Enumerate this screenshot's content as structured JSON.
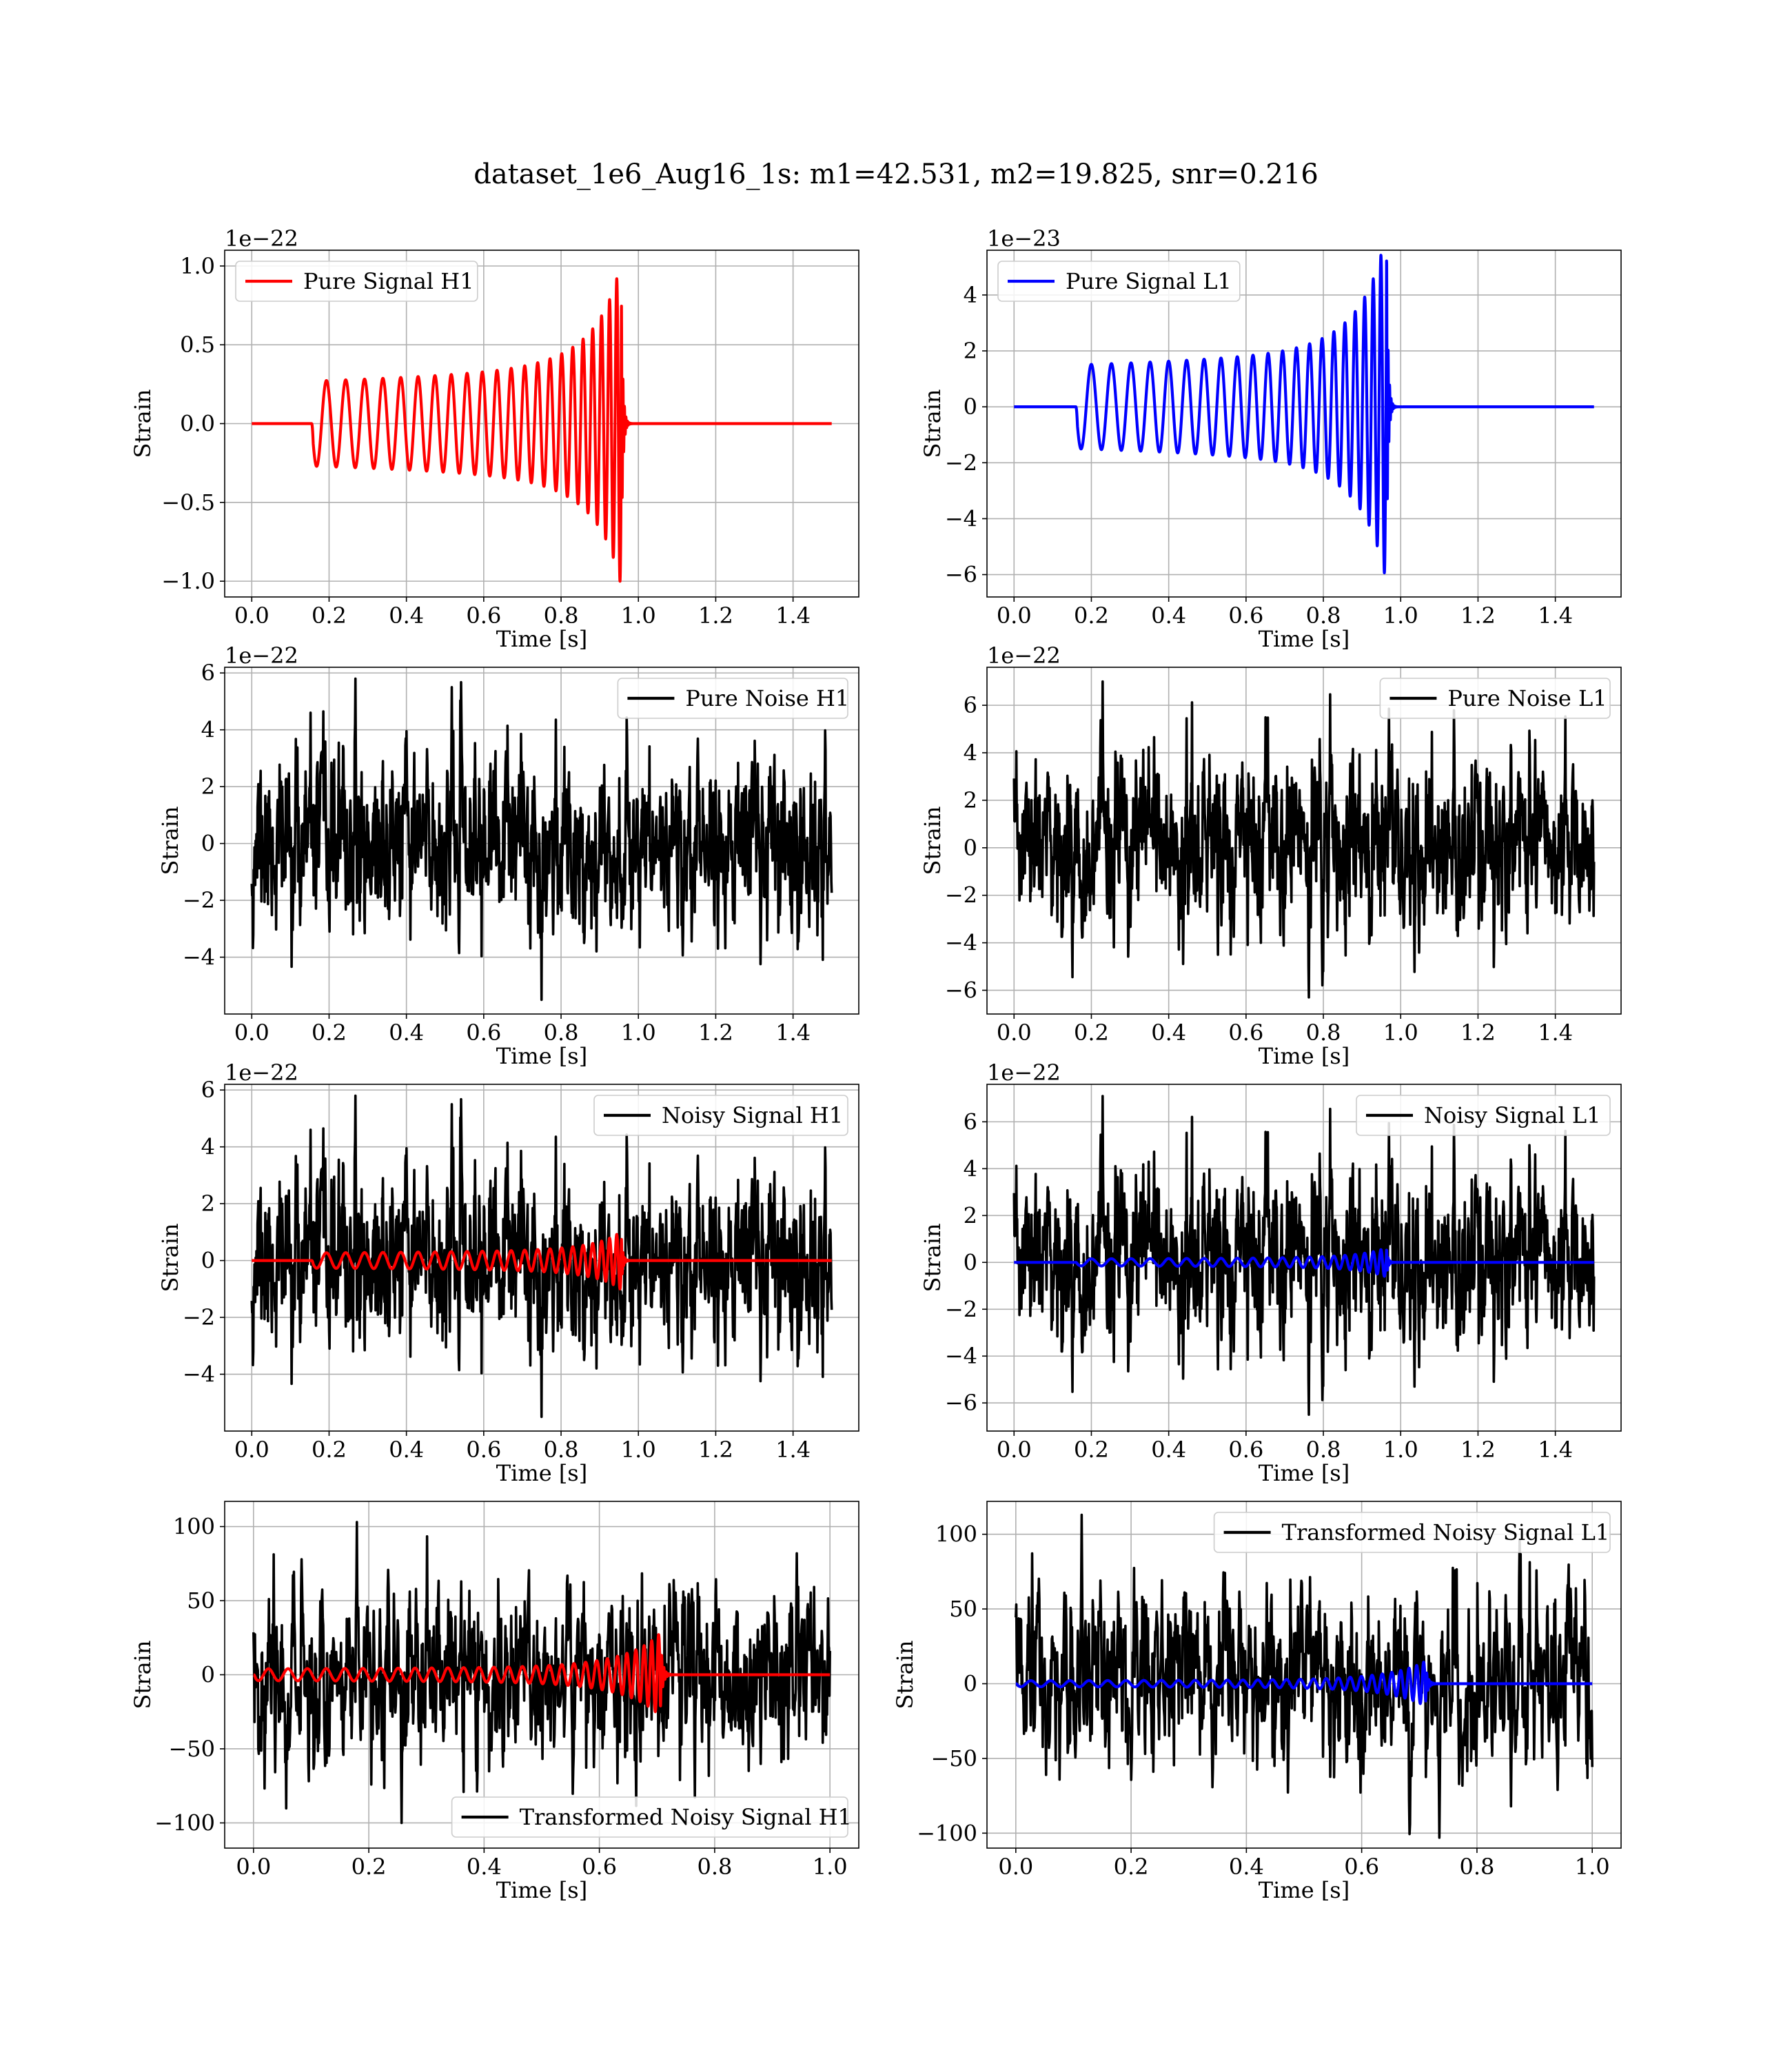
{
  "figure": {
    "title": "dataset_1e6_Aug16_1s: m1=42.531, m2=19.825, snr=0.216"
  },
  "colors": {
    "signal_h1": "#ff0000",
    "signal_l1": "#0000ff",
    "noise": "#000000",
    "grid": "#b0b0b0"
  },
  "chart_data": [
    {
      "id": "pure-signal-h1",
      "type": "line",
      "title": "",
      "xlabel": "Time [s]",
      "ylabel": "Strain",
      "offset_text": "1e−22",
      "xlim": [
        -0.07,
        1.57
      ],
      "ylim": [
        -1.1,
        1.1
      ],
      "xticks": [
        0.0,
        0.2,
        0.4,
        0.6,
        0.8,
        1.0,
        1.2,
        1.4
      ],
      "xtick_labels": [
        "0.0",
        "0.2",
        "0.4",
        "0.6",
        "0.8",
        "1.0",
        "1.2",
        "1.4"
      ],
      "yticks": [
        -1.0,
        -0.5,
        0.0,
        0.5,
        1.0
      ],
      "ytick_labels": [
        "−1.0",
        "−0.5",
        "0.0",
        "0.5",
        "1.0"
      ],
      "grid": true,
      "legend": {
        "position": "top-left",
        "entries": [
          {
            "label": "Pure Signal H1",
            "color": "#ff0000"
          }
        ]
      },
      "series": [
        {
          "name": "Pure Signal H1",
          "kind": "chirp",
          "color": "#ff0000",
          "params": {
            "t_start": 0.0,
            "t_end": 1.5,
            "t_on": 0.155,
            "t_merge": 0.955,
            "amp": 0.27,
            "peak_pos": 1.03,
            "peak_neg": -1.0,
            "cycles": 26
          }
        }
      ]
    },
    {
      "id": "pure-signal-l1",
      "type": "line",
      "title": "",
      "xlabel": "Time [s]",
      "ylabel": "Strain",
      "offset_text": "1e−23",
      "xlim": [
        -0.07,
        1.57
      ],
      "ylim": [
        -6.8,
        5.6
      ],
      "xticks": [
        0.0,
        0.2,
        0.4,
        0.6,
        0.8,
        1.0,
        1.2,
        1.4
      ],
      "xtick_labels": [
        "0.0",
        "0.2",
        "0.4",
        "0.6",
        "0.8",
        "1.0",
        "1.2",
        "1.4"
      ],
      "yticks": [
        -6,
        -4,
        -2,
        0,
        2,
        4
      ],
      "ytick_labels": [
        "−6",
        "−4",
        "−2",
        "0",
        "2",
        "4"
      ],
      "grid": true,
      "legend": {
        "position": "top-left",
        "entries": [
          {
            "label": "Pure Signal L1",
            "color": "#0000ff"
          }
        ]
      },
      "series": [
        {
          "name": "Pure Signal L1",
          "kind": "chirp",
          "color": "#0000ff",
          "params": {
            "t_start": 0.0,
            "t_end": 1.5,
            "t_on": 0.16,
            "t_merge": 0.963,
            "amp": 1.5,
            "peak_pos": 5.2,
            "peak_neg": -6.3,
            "cycles": 25
          }
        }
      ]
    },
    {
      "id": "pure-noise-h1",
      "type": "line",
      "title": "",
      "xlabel": "Time [s]",
      "ylabel": "Strain",
      "offset_text": "1e−22",
      "xlim": [
        -0.07,
        1.57
      ],
      "ylim": [
        -6.0,
        6.2
      ],
      "xticks": [
        0.0,
        0.2,
        0.4,
        0.6,
        0.8,
        1.0,
        1.2,
        1.4
      ],
      "xtick_labels": [
        "0.0",
        "0.2",
        "0.4",
        "0.6",
        "0.8",
        "1.0",
        "1.2",
        "1.4"
      ],
      "yticks": [
        -4,
        -2,
        0,
        2,
        4,
        6
      ],
      "ytick_labels": [
        "−4",
        "−2",
        "0",
        "2",
        "4",
        "6"
      ],
      "grid": true,
      "legend": {
        "position": "top-right",
        "entries": [
          {
            "label": "Pure Noise H1",
            "color": "#000000"
          }
        ]
      },
      "series": [
        {
          "name": "Pure Noise H1",
          "kind": "noise",
          "color": "#000000",
          "params": {
            "t_start": 0.0,
            "t_end": 1.5,
            "n": 1500,
            "sigma": 1.6,
            "max": 5.8,
            "min": -5.5,
            "seed": 11
          }
        }
      ]
    },
    {
      "id": "pure-noise-l1",
      "type": "line",
      "title": "",
      "xlabel": "Time [s]",
      "ylabel": "Strain",
      "offset_text": "1e−22",
      "xlim": [
        -0.07,
        1.57
      ],
      "ylim": [
        -7.0,
        7.6
      ],
      "xticks": [
        0.0,
        0.2,
        0.4,
        0.6,
        0.8,
        1.0,
        1.2,
        1.4
      ],
      "xtick_labels": [
        "0.0",
        "0.2",
        "0.4",
        "0.6",
        "0.8",
        "1.0",
        "1.2",
        "1.4"
      ],
      "yticks": [
        -6,
        -4,
        -2,
        0,
        2,
        4,
        6
      ],
      "ytick_labels": [
        "−6",
        "−4",
        "−2",
        "0",
        "2",
        "4",
        "6"
      ],
      "grid": true,
      "legend": {
        "position": "top-right",
        "entries": [
          {
            "label": "Pure Noise L1",
            "color": "#000000"
          }
        ]
      },
      "series": [
        {
          "name": "Pure Noise L1",
          "kind": "noise",
          "color": "#000000",
          "params": {
            "t_start": 0.0,
            "t_end": 1.5,
            "n": 1500,
            "sigma": 1.7,
            "max": 7.0,
            "min": -6.3,
            "seed": 23
          }
        }
      ]
    },
    {
      "id": "noisy-signal-h1",
      "type": "line",
      "title": "",
      "xlabel": "Time [s]",
      "ylabel": "Strain",
      "offset_text": "1e−22",
      "xlim": [
        -0.07,
        1.57
      ],
      "ylim": [
        -6.0,
        6.2
      ],
      "xticks": [
        0.0,
        0.2,
        0.4,
        0.6,
        0.8,
        1.0,
        1.2,
        1.4
      ],
      "xtick_labels": [
        "0.0",
        "0.2",
        "0.4",
        "0.6",
        "0.8",
        "1.0",
        "1.2",
        "1.4"
      ],
      "yticks": [
        -4,
        -2,
        0,
        2,
        4,
        6
      ],
      "ytick_labels": [
        "−4",
        "−2",
        "0",
        "2",
        "4",
        "6"
      ],
      "grid": true,
      "legend": {
        "position": "top-right",
        "entries": [
          {
            "label": "Noisy Signal H1",
            "color": "#000000"
          }
        ]
      },
      "series": [
        {
          "name": "Noisy Signal H1",
          "kind": "noise",
          "color": "#000000",
          "params": {
            "t_start": 0.0,
            "t_end": 1.5,
            "n": 1500,
            "sigma": 1.6,
            "max": 5.8,
            "min": -5.5,
            "seed": 11
          }
        },
        {
          "name": "Pure Signal H1",
          "kind": "chirp",
          "color": "#ff0000",
          "params": {
            "t_start": 0.0,
            "t_end": 1.5,
            "t_on": 0.155,
            "t_merge": 0.955,
            "amp": 0.27,
            "peak_pos": 1.03,
            "peak_neg": -1.0,
            "cycles": 26
          }
        }
      ]
    },
    {
      "id": "noisy-signal-l1",
      "type": "line",
      "title": "",
      "xlabel": "Time [s]",
      "ylabel": "Strain",
      "offset_text": "1e−22",
      "xlim": [
        -0.07,
        1.57
      ],
      "ylim": [
        -7.2,
        7.6
      ],
      "xticks": [
        0.0,
        0.2,
        0.4,
        0.6,
        0.8,
        1.0,
        1.2,
        1.4
      ],
      "xtick_labels": [
        "0.0",
        "0.2",
        "0.4",
        "0.6",
        "0.8",
        "1.0",
        "1.2",
        "1.4"
      ],
      "yticks": [
        -6,
        -4,
        -2,
        0,
        2,
        4,
        6
      ],
      "ytick_labels": [
        "−6",
        "−4",
        "−2",
        "0",
        "2",
        "4",
        "6"
      ],
      "grid": true,
      "legend": {
        "position": "top-right",
        "entries": [
          {
            "label": "Noisy Signal L1",
            "color": "#000000"
          }
        ]
      },
      "series": [
        {
          "name": "Noisy Signal L1",
          "kind": "noise",
          "color": "#000000",
          "params": {
            "t_start": 0.0,
            "t_end": 1.5,
            "n": 1500,
            "sigma": 1.7,
            "max": 7.1,
            "min": -6.5,
            "seed": 23
          }
        },
        {
          "name": "Pure Signal L1",
          "kind": "chirp",
          "color": "#0000ff",
          "params": {
            "t_start": 0.0,
            "t_end": 1.5,
            "t_on": 0.16,
            "t_merge": 0.963,
            "amp": 0.15,
            "peak_pos": 0.52,
            "peak_neg": -0.63,
            "cycles": 25
          }
        }
      ]
    },
    {
      "id": "transformed-noisy-signal-h1",
      "type": "line",
      "title": "",
      "xlabel": "Time [s]",
      "ylabel": "Strain",
      "offset_text": "",
      "xlim": [
        -0.05,
        1.05
      ],
      "ylim": [
        -117,
        117
      ],
      "xticks": [
        0.0,
        0.2,
        0.4,
        0.6,
        0.8,
        1.0
      ],
      "xtick_labels": [
        "0.0",
        "0.2",
        "0.4",
        "0.6",
        "0.8",
        "1.0"
      ],
      "yticks": [
        -100,
        -50,
        0,
        50,
        100
      ],
      "ytick_labels": [
        "−100",
        "−50",
        "0",
        "50",
        "100"
      ],
      "grid": true,
      "legend": {
        "position": "bottom-right",
        "entries": [
          {
            "label": "Transformed Noisy Signal H1",
            "color": "#000000"
          }
        ]
      },
      "series": [
        {
          "name": "Transformed Noisy Signal H1",
          "kind": "noise",
          "color": "#000000",
          "params": {
            "t_start": 0.0,
            "t_end": 1.0,
            "n": 1200,
            "sigma": 34,
            "max": 103,
            "min": -100,
            "seed": 37
          }
        },
        {
          "name": "Pure Signal H1",
          "kind": "chirp",
          "color": "#ff0000",
          "params": {
            "t_start": 0.0,
            "t_end": 1.0,
            "t_on": 0.0,
            "t_merge": 0.705,
            "amp": 4,
            "peak_pos": 28,
            "peak_neg": -28,
            "cycles": 34
          }
        }
      ]
    },
    {
      "id": "transformed-noisy-signal-l1",
      "type": "line",
      "title": "",
      "xlabel": "Time [s]",
      "ylabel": "Strain",
      "offset_text": "",
      "xlim": [
        -0.05,
        1.05
      ],
      "ylim": [
        -110,
        122
      ],
      "xticks": [
        0.0,
        0.2,
        0.4,
        0.6,
        0.8,
        1.0
      ],
      "xtick_labels": [
        "0.0",
        "0.2",
        "0.4",
        "0.6",
        "0.8",
        "1.0"
      ],
      "yticks": [
        -100,
        -50,
        0,
        50,
        100
      ],
      "ytick_labels": [
        "−100",
        "−50",
        "0",
        "50",
        "100"
      ],
      "grid": true,
      "legend": {
        "position": "top-right",
        "entries": [
          {
            "label": "Transformed Noisy Signal L1",
            "color": "#000000"
          }
        ]
      },
      "series": [
        {
          "name": "Transformed Noisy Signal L1",
          "kind": "noise",
          "color": "#000000",
          "params": {
            "t_start": 0.0,
            "t_end": 1.0,
            "n": 1200,
            "sigma": 34,
            "max": 113,
            "min": -103,
            "seed": 51
          }
        },
        {
          "name": "Pure Signal L1",
          "kind": "chirp",
          "color": "#0000ff",
          "params": {
            "t_start": 0.0,
            "t_end": 1.0,
            "t_on": 0.0,
            "t_merge": 0.71,
            "amp": 2,
            "peak_pos": 15,
            "peak_neg": -15,
            "cycles": 34
          }
        }
      ]
    }
  ]
}
